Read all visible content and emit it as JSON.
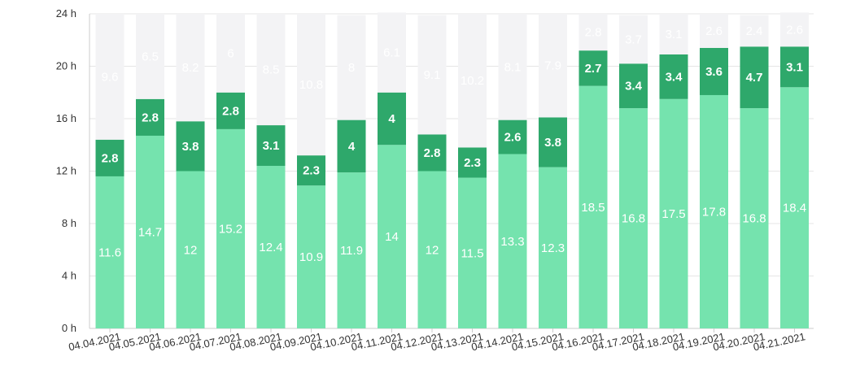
{
  "chart_data": {
    "type": "bar",
    "stacked": true,
    "y_unit": "h",
    "ylim": [
      0,
      24
    ],
    "yticks": [
      "0 h",
      "4 h",
      "8 h",
      "12 h",
      "16 h",
      "20 h",
      "24 h"
    ],
    "grid": true,
    "categories": [
      "04.04.2021",
      "04.05.2021",
      "04.06.2021",
      "04.07.2021",
      "04.08.2021",
      "04.09.2021",
      "04.10.2021",
      "04.11.2021",
      "04.12.2021",
      "04.13.2021",
      "04.14.2021",
      "04.15.2021",
      "04.16.2021",
      "04.17.2021",
      "04.18.2021",
      "04.19.2021",
      "04.20.2021",
      "04.21.2021"
    ],
    "series": [
      {
        "color": "#75e3ae",
        "label_style": "normal",
        "values": [
          11.6,
          14.7,
          12,
          15.2,
          12.4,
          10.9,
          11.9,
          14,
          12,
          11.5,
          13.3,
          12.3,
          18.5,
          16.8,
          17.5,
          17.8,
          16.8,
          18.4
        ]
      },
      {
        "color": "#2ea86b",
        "label_style": "bold",
        "values": [
          2.8,
          2.8,
          3.8,
          2.8,
          3.1,
          2.3,
          4,
          4,
          2.8,
          2.3,
          2.6,
          3.8,
          2.7,
          3.4,
          3.4,
          3.6,
          4.7,
          3.1
        ]
      },
      {
        "color": "#f3f3f5",
        "label_style": "normal",
        "values": [
          9.6,
          6.5,
          8.2,
          6,
          8.5,
          10.8,
          8,
          6.1,
          9.1,
          10.2,
          8.1,
          7.9,
          2.8,
          3.7,
          3.1,
          2.6,
          2.4,
          2.6
        ]
      }
    ]
  }
}
